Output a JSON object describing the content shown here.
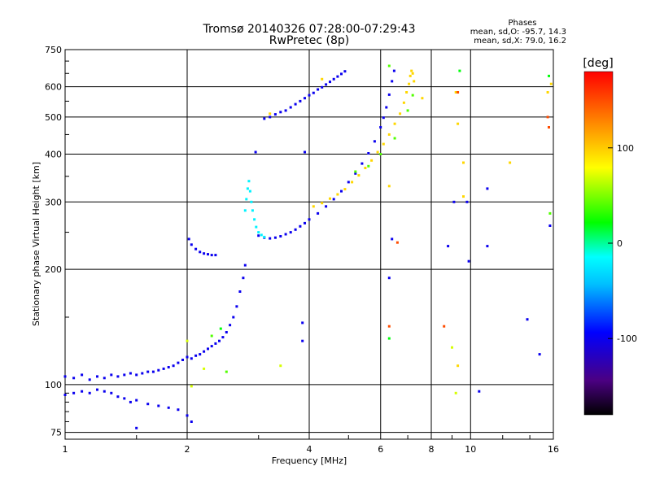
{
  "chart_data": {
    "type": "scatter",
    "title": "Tromsø 20140326 07:28:00-07:29:43",
    "subtitle": "RwPretec (8p)",
    "xlabel": "Frequency [MHz]",
    "ylabel": "Stationary phase Virtual Height [km]",
    "x_scale": "log",
    "y_scale": "log",
    "xlim": [
      1,
      16
    ],
    "ylim": [
      72,
      750
    ],
    "x_ticks": [
      {
        "value": 1,
        "label": "1"
      },
      {
        "value": 2,
        "label": "2"
      },
      {
        "value": 4,
        "label": "4"
      },
      {
        "value": 6,
        "label": "6"
      },
      {
        "value": 8,
        "label": "8"
      },
      {
        "value": 10,
        "label": "10"
      },
      {
        "value": 16,
        "label": "16"
      }
    ],
    "y_ticks": [
      {
        "value": 75,
        "label": "75"
      },
      {
        "value": 100,
        "label": "100"
      },
      {
        "value": 200,
        "label": "200"
      },
      {
        "value": 300,
        "label": "300"
      },
      {
        "value": 400,
        "label": "400"
      },
      {
        "value": 500,
        "label": "500"
      },
      {
        "value": 600,
        "label": "600"
      },
      {
        "value": 750,
        "label": "750"
      }
    ],
    "grid": true,
    "stats": {
      "header": "Phases",
      "o_label": "mean, sd,O: -95.7, 14.3",
      "x_label": "mean, sd,X: 79.0, 16.2"
    },
    "colorbar": {
      "label": "[deg]",
      "range": [
        -180,
        180
      ],
      "ticks": [
        {
          "value": 100,
          "label": "100"
        },
        {
          "value": 0,
          "label": "0"
        },
        {
          "value": -100,
          "label": "-100"
        }
      ]
    },
    "series": [
      {
        "phase_deg": -100,
        "points": [
          [
            1.0,
            105
          ],
          [
            1.05,
            104
          ],
          [
            1.1,
            106
          ],
          [
            1.15,
            103
          ],
          [
            1.2,
            105
          ],
          [
            1.25,
            104
          ],
          [
            1.3,
            106
          ],
          [
            1.35,
            105
          ],
          [
            1.4,
            106
          ],
          [
            1.45,
            107
          ],
          [
            1.5,
            106
          ],
          [
            1.55,
            107
          ],
          [
            1.6,
            108
          ],
          [
            1.65,
            108
          ],
          [
            1.7,
            109
          ],
          [
            1.75,
            110
          ],
          [
            1.8,
            111
          ],
          [
            1.85,
            112
          ],
          [
            1.9,
            114
          ],
          [
            1.95,
            116
          ],
          [
            2.0,
            118
          ],
          [
            2.05,
            117
          ],
          [
            2.1,
            119
          ],
          [
            2.15,
            120
          ],
          [
            2.2,
            122
          ],
          [
            2.25,
            124
          ],
          [
            2.3,
            126
          ],
          [
            2.35,
            128
          ],
          [
            2.4,
            130
          ],
          [
            2.45,
            133
          ],
          [
            2.5,
            137
          ],
          [
            2.55,
            143
          ],
          [
            2.6,
            150
          ],
          [
            2.65,
            160
          ],
          [
            2.7,
            175
          ],
          [
            2.75,
            190
          ],
          [
            2.78,
            205
          ],
          [
            1.0,
            94
          ],
          [
            1.05,
            95
          ],
          [
            1.1,
            96
          ],
          [
            1.15,
            95
          ],
          [
            1.2,
            97
          ],
          [
            1.25,
            96
          ],
          [
            1.3,
            95
          ],
          [
            1.35,
            93
          ],
          [
            1.4,
            92
          ],
          [
            1.45,
            90
          ],
          [
            1.5,
            91
          ],
          [
            1.6,
            89
          ],
          [
            1.7,
            88
          ],
          [
            1.8,
            87
          ],
          [
            1.9,
            86
          ],
          [
            1.5,
            77
          ],
          [
            2.0,
            83
          ],
          [
            2.05,
            80
          ],
          [
            2.02,
            240
          ],
          [
            2.05,
            232
          ],
          [
            2.1,
            226
          ],
          [
            2.15,
            222
          ],
          [
            2.2,
            220
          ],
          [
            2.25,
            219
          ],
          [
            2.3,
            218
          ],
          [
            2.35,
            218
          ],
          [
            3.0,
            245
          ],
          [
            3.1,
            242
          ],
          [
            3.2,
            241
          ],
          [
            3.3,
            242
          ],
          [
            3.4,
            244
          ],
          [
            3.5,
            247
          ],
          [
            3.6,
            250
          ],
          [
            3.7,
            254
          ],
          [
            3.8,
            259
          ],
          [
            3.9,
            264
          ],
          [
            4.0,
            270
          ],
          [
            4.2,
            280
          ],
          [
            4.4,
            292
          ],
          [
            4.6,
            305
          ],
          [
            4.8,
            320
          ],
          [
            5.0,
            338
          ],
          [
            5.2,
            356
          ],
          [
            5.4,
            378
          ],
          [
            5.6,
            402
          ],
          [
            5.8,
            432
          ],
          [
            6.0,
            470
          ],
          [
            6.1,
            498
          ],
          [
            6.2,
            530
          ],
          [
            6.3,
            572
          ],
          [
            6.4,
            620
          ],
          [
            6.48,
            660
          ],
          [
            3.1,
            495
          ],
          [
            3.2,
            500
          ],
          [
            3.3,
            508
          ],
          [
            3.4,
            515
          ],
          [
            3.5,
            520
          ],
          [
            3.6,
            530
          ],
          [
            3.7,
            540
          ],
          [
            3.8,
            550
          ],
          [
            3.9,
            560
          ],
          [
            4.0,
            570
          ],
          [
            4.1,
            578
          ],
          [
            4.2,
            590
          ],
          [
            4.3,
            598
          ],
          [
            4.4,
            608
          ],
          [
            4.5,
            618
          ],
          [
            4.6,
            628
          ],
          [
            4.7,
            638
          ],
          [
            4.8,
            648
          ],
          [
            4.9,
            658
          ],
          [
            2.95,
            405
          ],
          [
            3.9,
            405
          ],
          [
            3.85,
            145
          ],
          [
            3.85,
            130
          ],
          [
            6.3,
            190
          ],
          [
            6.4,
            240
          ],
          [
            8.8,
            230
          ],
          [
            9.1,
            300
          ],
          [
            9.8,
            300
          ],
          [
            11.0,
            325
          ],
          [
            11.0,
            230
          ],
          [
            9.9,
            210
          ],
          [
            10.5,
            96
          ],
          [
            13.8,
            148
          ],
          [
            14.8,
            120
          ],
          [
            15.7,
            260
          ]
        ]
      },
      {
        "phase_deg": -20,
        "points": [
          [
            2.78,
            285
          ],
          [
            2.8,
            305
          ],
          [
            2.82,
            325
          ],
          [
            2.84,
            340
          ],
          [
            2.86,
            320
          ],
          [
            2.88,
            300
          ],
          [
            2.9,
            285
          ],
          [
            2.93,
            270
          ],
          [
            2.96,
            258
          ],
          [
            3.0,
            250
          ],
          [
            3.05,
            246
          ],
          [
            3.1,
            243
          ]
        ]
      },
      {
        "phase_deg": 95,
        "points": [
          [
            4.1,
            292
          ],
          [
            4.3,
            298
          ],
          [
            4.5,
            306
          ],
          [
            4.7,
            314
          ],
          [
            4.9,
            324
          ],
          [
            5.1,
            338
          ],
          [
            5.3,
            352
          ],
          [
            5.5,
            368
          ],
          [
            5.7,
            385
          ],
          [
            5.9,
            405
          ],
          [
            6.1,
            425
          ],
          [
            6.3,
            450
          ],
          [
            6.5,
            480
          ],
          [
            6.7,
            510
          ],
          [
            6.85,
            545
          ],
          [
            6.95,
            580
          ],
          [
            7.05,
            610
          ],
          [
            7.1,
            640
          ],
          [
            7.15,
            660
          ],
          [
            7.2,
            650
          ],
          [
            7.25,
            620
          ],
          [
            3.2,
            510
          ],
          [
            4.3,
            628
          ],
          [
            6.3,
            330
          ],
          [
            7.6,
            560
          ],
          [
            9.2,
            580
          ],
          [
            9.3,
            480
          ],
          [
            9.6,
            380
          ],
          [
            9.6,
            310
          ],
          [
            12.5,
            380
          ],
          [
            9.3,
            112
          ],
          [
            15.5,
            580
          ],
          [
            15.8,
            610
          ]
        ]
      },
      {
        "phase_deg": 40,
        "points": [
          [
            5.2,
            360
          ],
          [
            5.6,
            372
          ],
          [
            6.0,
            400
          ],
          [
            6.5,
            440
          ],
          [
            7.0,
            520
          ],
          [
            7.2,
            570
          ],
          [
            2.3,
            134
          ],
          [
            2.5,
            108
          ],
          [
            15.7,
            280
          ],
          [
            6.3,
            680
          ]
        ]
      },
      {
        "phase_deg": 150,
        "points": [
          [
            6.6,
            235
          ],
          [
            6.3,
            142
          ],
          [
            8.6,
            142
          ],
          [
            9.3,
            580
          ],
          [
            15.5,
            500
          ],
          [
            15.6,
            470
          ]
        ]
      },
      {
        "phase_deg": 20,
        "points": [
          [
            2.42,
            140
          ],
          [
            6.3,
            132
          ],
          [
            9.4,
            660
          ],
          [
            15.6,
            640
          ]
        ]
      },
      {
        "phase_deg": 70,
        "points": [
          [
            2.2,
            110
          ],
          [
            3.4,
            112
          ],
          [
            9.0,
            125
          ],
          [
            9.2,
            95
          ],
          [
            2.0,
            130
          ],
          [
            2.05,
            99
          ]
        ]
      }
    ]
  }
}
